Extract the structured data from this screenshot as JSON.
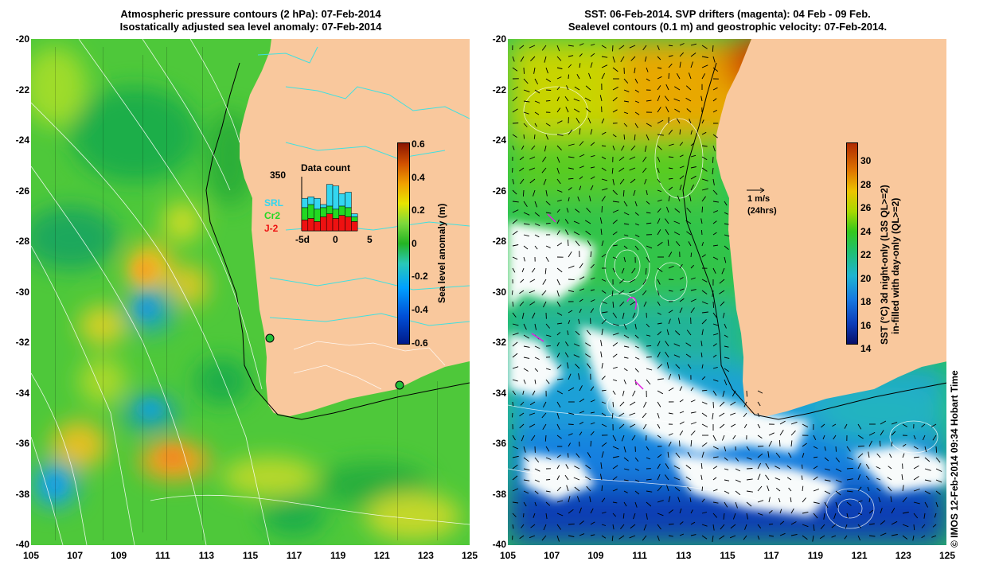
{
  "left_panel": {
    "title_line1": "Atmospheric pressure contours (2 hPa): 07-Feb-2014",
    "title_line2": "Isostatically adjusted sea level anomaly: 07-Feb-2014",
    "colorbar": {
      "label": "Sea level anomaly (m)",
      "ticks": [
        "0.6",
        "0.4",
        "0.2",
        "0",
        "-0.2",
        "-0.4",
        "-0.6"
      ]
    },
    "inset": {
      "title": "Data count",
      "max_label": "350",
      "x_ticks": [
        "-5d",
        "0",
        "5"
      ],
      "legend": [
        "SRL",
        "Cr2",
        "J-2"
      ],
      "legend_colors": [
        "#33d6f0",
        "#22d822",
        "#ee1111"
      ],
      "bars": [
        {
          "srl": 60,
          "cr2": 80,
          "j2": 70
        },
        {
          "srl": 50,
          "cr2": 90,
          "j2": 80
        },
        {
          "srl": 70,
          "cr2": 80,
          "j2": 60
        },
        {
          "srl": 20,
          "cr2": 60,
          "j2": 90
        },
        {
          "srl": 140,
          "cr2": 50,
          "j2": 110
        },
        {
          "srl": 150,
          "cr2": 60,
          "j2": 80
        },
        {
          "srl": 80,
          "cr2": 60,
          "j2": 100
        },
        {
          "srl": 100,
          "cr2": 60,
          "j2": 90
        },
        {
          "srl": 20,
          "cr2": 30,
          "j2": 60
        }
      ]
    }
  },
  "right_panel": {
    "title_line1": "SST: 06-Feb-2014. SVP drifters (magenta): 04 Feb - 09 Feb.",
    "title_line2": "Sealevel contours (0.1 m) and geostrophic velocity: 07-Feb-2014.",
    "colorbar": {
      "label_line1": "SST (°C) 3d night-only (L3S QL>=2)",
      "label_line2": "in-filled with day-only (QL>=2)",
      "ticks": [
        "30",
        "28",
        "26",
        "24",
        "22",
        "20",
        "18",
        "16",
        "14"
      ]
    },
    "vector_scale": {
      "label": "1 m/s",
      "sublabel": "(24hrs)"
    }
  },
  "axes": {
    "lat_labels": [
      "-20",
      "-22",
      "-24",
      "-26",
      "-28",
      "-30",
      "-32",
      "-34",
      "-36",
      "-38",
      "-40"
    ],
    "lon_labels": [
      "105",
      "107",
      "109",
      "111",
      "113",
      "115",
      "117",
      "119",
      "121",
      "123",
      "125"
    ]
  },
  "footer": {
    "imos_stamp": "© IMOS 12-Feb-2014 09:34 Hobart Time"
  },
  "colors": {
    "land": "#f9c89d",
    "shelf_contour": "#000000",
    "coast_contour": "#40e0e0"
  }
}
